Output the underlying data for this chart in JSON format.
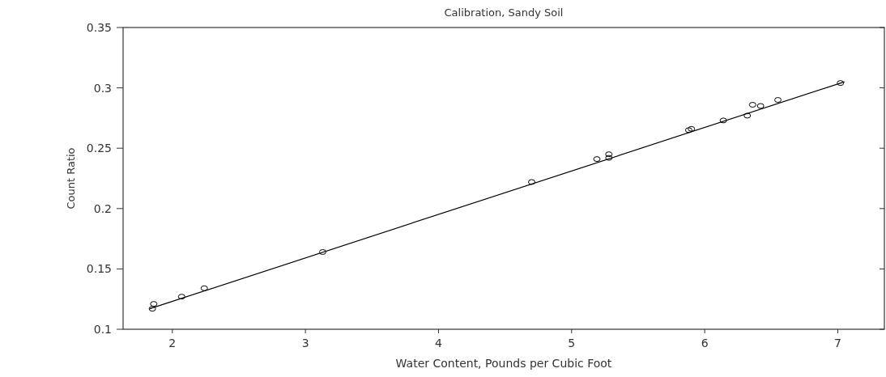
{
  "chart_data": {
    "type": "scatter",
    "title": "Calibration, Sandy Soil",
    "xlabel": "Water Content, Pounds per Cubic Foot",
    "ylabel": "Count Ratio",
    "xlim": [
      1.63,
      7.35
    ],
    "xticks": [
      2,
      3,
      4,
      5,
      6,
      7
    ],
    "ylim": [
      0.1,
      0.35
    ],
    "yticks": [
      0.1,
      0.15,
      0.2,
      0.25,
      0.3,
      0.35
    ],
    "grid": false,
    "series": [
      {
        "color": "#000000",
        "marker": "circle",
        "x": [
          1.85,
          1.86,
          2.07,
          2.24,
          3.13,
          4.7,
          5.19,
          5.28,
          5.28,
          5.88,
          5.9,
          6.14,
          6.32,
          6.36,
          6.42,
          6.55,
          7.02
        ],
        "values": [
          0.117,
          0.121,
          0.127,
          0.134,
          0.164,
          0.222,
          0.241,
          0.245,
          0.242,
          0.265,
          0.266,
          0.273,
          0.277,
          0.286,
          0.285,
          0.29,
          0.304
        ]
      },
      {
        "type": "line",
        "color": "#000000",
        "marker": "none",
        "line_style": "solid",
        "x": [
          1.83,
          7.05
        ],
        "values": [
          0.117,
          0.305
        ]
      }
    ]
  }
}
